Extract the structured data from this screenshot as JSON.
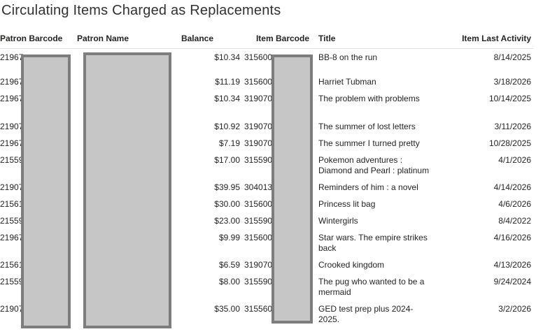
{
  "colors": {
    "redaction_fill": "#c6c6c6",
    "redaction_border": "#7d7d7d",
    "header_text": "#252423",
    "body_text": "#252423",
    "title_text": "#323130",
    "header_rule": "#e0e0e0"
  },
  "report": {
    "title": "Circulating Items Charged as Replacements"
  },
  "table": {
    "columns": [
      "Patron Barcode",
      "Patron Name",
      "Balance",
      "Item Barcode",
      "Title",
      "Item Last Activity"
    ],
    "rows": [
      {
        "patron_barcode": "21967",
        "patron_name": "",
        "balance": "$10.34",
        "item_barcode": "315600",
        "title": "BB-8 on the run",
        "item_last_activity": "8/14/2025"
      },
      {
        "patron_barcode": "21967",
        "patron_name": "",
        "balance": "$11.19",
        "item_barcode": "315600",
        "title": "Harriet Tubman",
        "item_last_activity": "3/18/2026"
      },
      {
        "patron_barcode": "21967",
        "patron_name": "",
        "balance": "$10.34",
        "item_barcode": "319070",
        "title": "The problem with problems",
        "item_last_activity": "10/14/2025"
      },
      {
        "patron_barcode": "21907",
        "patron_name": "",
        "balance": "$10.92",
        "item_barcode": "319070",
        "title": "The summer of lost letters",
        "item_last_activity": "3/11/2026"
      },
      {
        "patron_barcode": "21967",
        "patron_name": "",
        "balance": "$7.19",
        "item_barcode": "319070",
        "title": "The summer I turned pretty",
        "item_last_activity": "10/28/2025"
      },
      {
        "patron_barcode": "21559",
        "patron_name": "",
        "balance": "$17.00",
        "item_barcode": "315590",
        "title": "Pokemon adventures :\nDiamond and Pearl : platinum",
        "item_last_activity": "4/1/2026"
      },
      {
        "patron_barcode": "21907",
        "patron_name": "",
        "balance": "$39.95",
        "item_barcode": "304013",
        "title": "Reminders of him : a novel",
        "item_last_activity": "4/14/2026"
      },
      {
        "patron_barcode": "21561",
        "patron_name": "",
        "balance": "$30.00",
        "item_barcode": "315600",
        "title": "Princess lit bag",
        "item_last_activity": "4/6/2026"
      },
      {
        "patron_barcode": "21559",
        "patron_name": "",
        "balance": "$23.00",
        "item_barcode": "315590",
        "title": "Wintergirls",
        "item_last_activity": "8/4/2022"
      },
      {
        "patron_barcode": "21967",
        "patron_name": "",
        "balance": "$9.99",
        "item_barcode": "315600",
        "title": "Star wars. The empire strikes\nback",
        "item_last_activity": "4/16/2026"
      },
      {
        "patron_barcode": "21561",
        "patron_name": "",
        "balance": "$6.59",
        "item_barcode": "319070",
        "title": "Crooked kingdom",
        "item_last_activity": "4/13/2026"
      },
      {
        "patron_barcode": "21559",
        "patron_name": "",
        "balance": "$8.00",
        "item_barcode": "315590",
        "title": "The pug who wanted to be a\nmermaid",
        "item_last_activity": "9/24/2024"
      },
      {
        "patron_barcode": "21907",
        "patron_name": "",
        "balance": "$35.00",
        "item_barcode": "315560",
        "title": "GED test prep plus 2024-\n2025.",
        "item_last_activity": "3/2/2026"
      }
    ]
  }
}
